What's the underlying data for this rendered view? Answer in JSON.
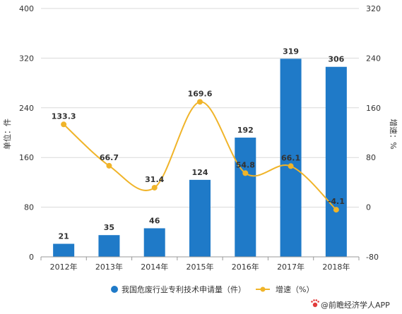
{
  "chart_data": {
    "type": "bar",
    "categories": [
      "2012年",
      "2013年",
      "2014年",
      "2015年",
      "2016年",
      "2017年",
      "2018年"
    ],
    "series": [
      {
        "name": "我国危废行业专利技术申请量（件）",
        "type": "bar",
        "axis": "left",
        "values": [
          21,
          35,
          46,
          124,
          192,
          319,
          306
        ],
        "labels": [
          "21",
          "35",
          "46",
          "124",
          "192",
          "319",
          "306"
        ]
      },
      {
        "name": "增速（%）",
        "type": "line",
        "axis": "right",
        "values": [
          133.3,
          66.7,
          31.4,
          169.6,
          54.8,
          66.1,
          -4.1
        ],
        "labels": [
          "133.3",
          "66.7",
          "31.4",
          "169.6",
          "54.8",
          "66.1",
          "-4.1"
        ]
      }
    ],
    "y_left": {
      "label": "单位：件",
      "ylim": [
        0,
        400
      ],
      "ticks": [
        0,
        80,
        160,
        240,
        320,
        400
      ],
      "tick_labels": [
        "0",
        "80",
        "160",
        "240",
        "320",
        "400"
      ]
    },
    "y_right": {
      "label": "增速：%",
      "ylim": [
        -80,
        320
      ],
      "ticks": [
        -80,
        0,
        80,
        160,
        240,
        320
      ],
      "tick_labels": [
        "-80",
        "0",
        "80",
        "160",
        "240",
        "320"
      ]
    },
    "grid": true,
    "legend_position": "bottom"
  },
  "colors": {
    "bar": "#1f7ac8",
    "line": "#f0b429",
    "grid": "#d9d9d9",
    "credit_icon": "#e23b3b"
  },
  "credit": {
    "icon": "paw-icon",
    "text": "@前瞻经济学人APP"
  }
}
